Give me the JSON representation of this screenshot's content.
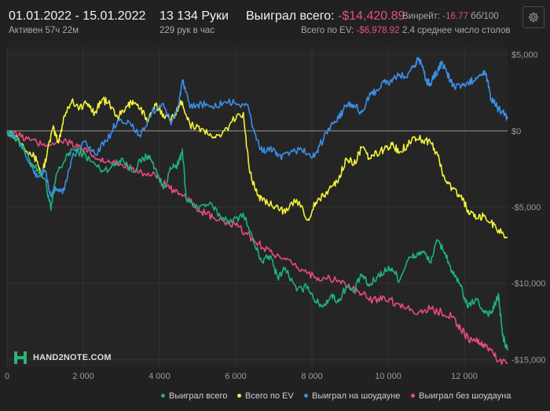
{
  "header": {
    "date_range": "01.01.2022 - 15.01.2022",
    "active": "Активен 57ч 22м",
    "hands": "13 134 Руки",
    "rate": "229 рук в час",
    "won_label": "Выиграл всего:",
    "won_value": "-$14,420.89",
    "ev_label": "Всего по EV:",
    "ev_value": "-$6,978.92",
    "winrate_label": "Винрейт:",
    "winrate_value": "-16.77",
    "winrate_unit": "бб/100",
    "tables": "2.4 среднее число столов"
  },
  "icons": {
    "settings": "gear-icon",
    "logo": "hand2note-logo-icon"
  },
  "logo": {
    "text": "HAND2NOTE.COM"
  },
  "legend": [
    {
      "label": "Выиграл всего",
      "color": "#1db37a"
    },
    {
      "label": "Всего по EV",
      "color": "#f2f23a"
    },
    {
      "label": "Выиграл на шоудауне",
      "color": "#3a8fe8"
    },
    {
      "label": "Выиграл без шоудауна",
      "color": "#ea4a7e"
    }
  ],
  "chart_data": {
    "type": "line",
    "xlim": [
      0,
      13134
    ],
    "ylim": [
      -15500,
      5500
    ],
    "x_ticks": [
      {
        "value": 0,
        "label": "0"
      },
      {
        "value": 2000,
        "label": "2 000"
      },
      {
        "value": 4000,
        "label": "4 000"
      },
      {
        "value": 6000,
        "label": "6 000"
      },
      {
        "value": 8000,
        "label": "8 000"
      },
      {
        "value": 10000,
        "label": "10 000"
      },
      {
        "value": 12000,
        "label": "12 000"
      }
    ],
    "y_ticks": [
      {
        "value": 5000,
        "label": "$5,000"
      },
      {
        "value": 0,
        "label": "$0"
      },
      {
        "value": -5000,
        "label": "-$5,000"
      },
      {
        "value": -10000,
        "label": "-$10,000"
      },
      {
        "value": -15000,
        "label": "-$15,000"
      }
    ],
    "grid": true,
    "legend_position": "bottom",
    "series": [
      {
        "name": "Выиграл всего",
        "color": "#1db37a",
        "x": [
          0,
          300,
          600,
          800,
          1000,
          1150,
          1300,
          1500,
          1700,
          2000,
          2200,
          2500,
          2800,
          3000,
          3300,
          3500,
          3700,
          3900,
          4100,
          4300,
          4500,
          4600,
          4700,
          5000,
          5300,
          5600,
          5900,
          6200,
          6500,
          6700,
          6900,
          7100,
          7300,
          7600,
          7900,
          8100,
          8300,
          8500,
          8700,
          8900,
          9100,
          9300,
          9500,
          9700,
          9900,
          10100,
          10300,
          10500,
          10700,
          10900,
          11100,
          11300,
          11500,
          11700,
          11900,
          12100,
          12300,
          12500,
          12700,
          12800,
          12900,
          13000,
          13134
        ],
        "y": [
          0,
          -600,
          -2000,
          -2500,
          -3200,
          -5200,
          -2800,
          -2000,
          -1200,
          -1500,
          -2000,
          -2600,
          -2300,
          -1800,
          -2700,
          -2000,
          -1600,
          -2500,
          -3800,
          -2500,
          -2200,
          -1200,
          -4500,
          -5000,
          -4800,
          -5600,
          -6000,
          -5400,
          -7500,
          -8600,
          -8200,
          -9600,
          -9000,
          -10500,
          -10200,
          -11200,
          -11500,
          -10800,
          -11200,
          -10200,
          -10600,
          -9400,
          -10200,
          -9600,
          -9200,
          -9000,
          -9800,
          -8500,
          -8200,
          -7900,
          -8600,
          -7200,
          -8000,
          -9400,
          -10200,
          -11600,
          -11000,
          -11800,
          -12000,
          -11400,
          -10800,
          -13400,
          -14420.89
        ]
      },
      {
        "name": "Всего по EV",
        "color": "#f2f23a",
        "x": [
          0,
          300,
          600,
          800,
          900,
          1050,
          1200,
          1350,
          1500,
          1700,
          1900,
          2100,
          2300,
          2500,
          2700,
          2900,
          3100,
          3300,
          3500,
          3700,
          3900,
          4100,
          4300,
          4500,
          4600,
          4800,
          5000,
          5300,
          5600,
          5900,
          6200,
          6350,
          6500,
          6700,
          6900,
          7100,
          7300,
          7600,
          7900,
          8100,
          8300,
          8500,
          8700,
          8900,
          9100,
          9300,
          9500,
          9700,
          9900,
          10100,
          10300,
          10500,
          10700,
          10900,
          11100,
          11300,
          11500,
          11700,
          11900,
          12100,
          12300,
          12500,
          12700,
          12900,
          13134
        ],
        "y": [
          0,
          -500,
          -1400,
          -2000,
          -3000,
          -1500,
          200,
          -800,
          1000,
          2000,
          1500,
          1800,
          1200,
          2100,
          1700,
          900,
          1400,
          2000,
          1500,
          600,
          1700,
          1100,
          700,
          1600,
          1900,
          400,
          300,
          -300,
          -400,
          600,
          1200,
          -2400,
          -3800,
          -4600,
          -4800,
          -4900,
          -5400,
          -4500,
          -5800,
          -4700,
          -4300,
          -3700,
          -3200,
          -1800,
          -2200,
          -1100,
          -1800,
          -1500,
          -1200,
          -900,
          -1400,
          -900,
          -400,
          -600,
          -700,
          -1600,
          -3300,
          -3800,
          -4300,
          -5200,
          -5800,
          -5600,
          -6000,
          -6500,
          -6978.92
        ]
      },
      {
        "name": "Выиграл на шоудауне",
        "color": "#3a8fe8",
        "x": [
          0,
          300,
          600,
          800,
          1000,
          1150,
          1300,
          1500,
          1700,
          2000,
          2300,
          2600,
          2900,
          3200,
          3500,
          3800,
          4100,
          4300,
          4500,
          4600,
          4800,
          5100,
          5400,
          5700,
          6000,
          6300,
          6500,
          6700,
          6900,
          7100,
          7400,
          7700,
          8000,
          8200,
          8500,
          8700,
          8900,
          9100,
          9300,
          9500,
          9700,
          9900,
          10100,
          10300,
          10500,
          10700,
          10800,
          10900,
          11000,
          11100,
          11200,
          11300,
          11400,
          11500,
          11600,
          11700,
          11900,
          12100,
          12300,
          12500,
          12600,
          12700,
          12800,
          12900,
          13000,
          13134
        ],
        "y": [
          0,
          -600,
          -2200,
          -3000,
          -2600,
          -4300,
          -3800,
          -3900,
          -1800,
          -700,
          -1500,
          -700,
          700,
          600,
          -400,
          1200,
          1800,
          400,
          1700,
          3300,
          1500,
          1800,
          1500,
          1900,
          1800,
          1700,
          -200,
          -1400,
          -1100,
          -1700,
          -1600,
          -1100,
          -1800,
          -1000,
          400,
          800,
          1700,
          1700,
          1200,
          2200,
          2700,
          3200,
          3200,
          3700,
          3500,
          4300,
          4800,
          4200,
          3300,
          3100,
          3600,
          3900,
          4400,
          4100,
          3500,
          3000,
          2800,
          3100,
          3500,
          3900,
          3400,
          2000,
          1800,
          1400,
          1300,
          800
        ]
      },
      {
        "name": "Выиграл без шоудауна",
        "color": "#ea4a7e",
        "x": [
          0,
          300,
          600,
          900,
          1200,
          1500,
          1800,
          2100,
          2400,
          2700,
          3000,
          3300,
          3600,
          3900,
          4200,
          4500,
          4800,
          5100,
          5400,
          5700,
          6000,
          6300,
          6600,
          6900,
          7200,
          7500,
          7800,
          8100,
          8400,
          8700,
          9000,
          9300,
          9600,
          9900,
          10200,
          10500,
          10800,
          11100,
          11400,
          11700,
          11900,
          12100,
          12300,
          12500,
          12700,
          12900,
          13134
        ],
        "y": [
          0,
          -300,
          -600,
          -900,
          -800,
          -600,
          -1000,
          -1400,
          -1900,
          -2100,
          -2200,
          -2400,
          -2800,
          -3000,
          -3600,
          -4200,
          -4600,
          -5300,
          -5700,
          -6000,
          -6200,
          -6800,
          -7400,
          -7900,
          -8400,
          -8800,
          -9200,
          -9600,
          -9700,
          -9800,
          -10300,
          -10700,
          -11100,
          -10900,
          -11300,
          -11600,
          -11900,
          -11700,
          -11900,
          -12200,
          -13000,
          -13600,
          -13800,
          -14000,
          -14400,
          -15100,
          -15200
        ]
      }
    ]
  }
}
